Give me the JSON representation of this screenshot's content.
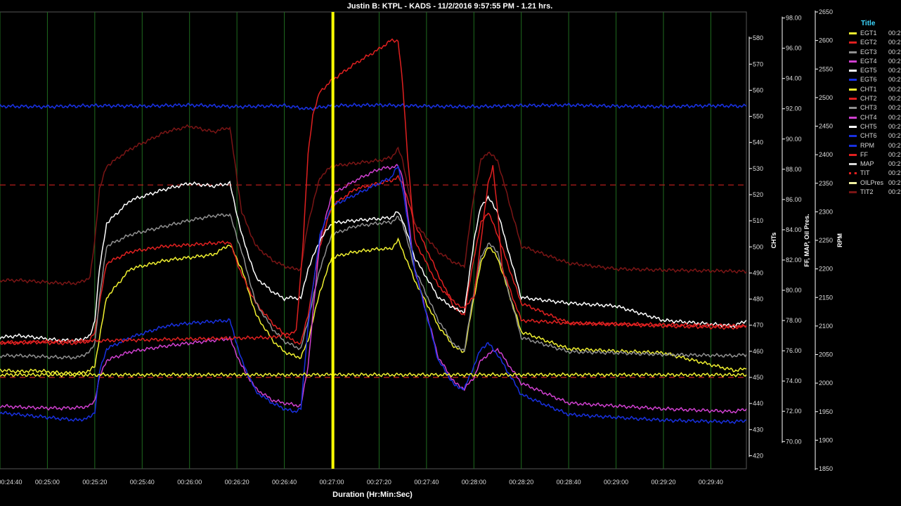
{
  "title": "Justin B: KTPL - KADS - 11/2/2016 9:57:55 PM - 1.21 hrs.",
  "chart_data": {
    "type": "line",
    "title": "Justin B: KTPL - KADS - 11/2/2016 9:57:55 PM - 1.21 hrs.",
    "xlabel": "Duration (Hr:Min:Sec)",
    "x_unit": "seconds",
    "x_ticks": [
      {
        "t": 1480,
        "label": "00:24:40"
      },
      {
        "t": 1500,
        "label": "00:25:00"
      },
      {
        "t": 1520,
        "label": "00:25:20"
      },
      {
        "t": 1540,
        "label": "00:25:40"
      },
      {
        "t": 1560,
        "label": "00:26:00"
      },
      {
        "t": 1580,
        "label": "00:26:20"
      },
      {
        "t": 1600,
        "label": "00:26:40"
      },
      {
        "t": 1620,
        "label": "00:27:00"
      },
      {
        "t": 1640,
        "label": "00:27:20"
      },
      {
        "t": 1660,
        "label": "00:27:40"
      },
      {
        "t": 1680,
        "label": "00:28:00"
      },
      {
        "t": 1700,
        "label": "00:28:20"
      },
      {
        "t": 1720,
        "label": "00:28:40"
      },
      {
        "t": 1740,
        "label": "00:29:00"
      },
      {
        "t": 1760,
        "label": "00:29:20"
      },
      {
        "t": 1780,
        "label": "00:29:40"
      }
    ],
    "xlim": [
      1480,
      1795
    ],
    "cursor_x": 1620.5,
    "reference_lines": [
      {
        "axis": "rpm",
        "value": 2347,
        "color": "#c8201e"
      },
      {
        "axis": "rpm",
        "value": 2010,
        "color": "#c8201e"
      }
    ],
    "axes": [
      {
        "id": "cht",
        "label": "CHTs",
        "ylim": [
          415,
          590
        ],
        "ticks": [
          420,
          430,
          440,
          450,
          460,
          470,
          480,
          490,
          500,
          510,
          520,
          530,
          540,
          550,
          560,
          570,
          580
        ]
      },
      {
        "id": "ff",
        "label": "FF,  MAP,  Oil Pres.",
        "ylim": [
          68.2,
          98.4
        ],
        "ticks": [
          "70.00",
          "72.00",
          "74.00",
          "76.00",
          "78.00",
          "80.00",
          "82.00",
          "84.00",
          "86.00",
          "88.00",
          "90.00",
          "92.00",
          "94.00",
          "96.00",
          "98.00"
        ]
      },
      {
        "id": "rpm",
        "label": "RPM",
        "ylim": [
          1850,
          2650
        ],
        "ticks": [
          1850,
          1900,
          1950,
          2000,
          2050,
          2100,
          2150,
          2200,
          2250,
          2300,
          2350,
          2400,
          2450,
          2500,
          2550,
          2600,
          2650
        ]
      }
    ],
    "series": [
      {
        "name": "EGT1",
        "color": "#f0f030",
        "axis": "rpm",
        "x": [
          1480,
          1488,
          1495,
          1505,
          1513,
          1518,
          1520,
          1522,
          1525,
          1535,
          1550,
          1560,
          1570,
          1577,
          1582,
          1588,
          1595,
          1600,
          1604,
          1607,
          1610,
          1615,
          1620,
          1630,
          1640,
          1645,
          1648,
          1650,
          1655,
          1665,
          1672,
          1676,
          1680,
          1683,
          1686,
          1690,
          1700,
          1720,
          1740,
          1760,
          1790,
          1795
        ],
        "y": [
          2023,
          2020,
          2022,
          2018,
          2017,
          2022,
          2030,
          2080,
          2150,
          2200,
          2215,
          2220,
          2225,
          2243,
          2200,
          2120,
          2075,
          2055,
          2048,
          2045,
          2075,
          2160,
          2220,
          2230,
          2235,
          2235,
          2250,
          2232,
          2180,
          2100,
          2062,
          2055,
          2150,
          2210,
          2240,
          2220,
          2090,
          2060,
          2056,
          2053,
          2022,
          2025
        ]
      },
      {
        "name": "EGT2",
        "color": "#e02020",
        "axis": "rpm",
        "x": [
          1480,
          1488,
          1495,
          1505,
          1513,
          1518,
          1520,
          1522,
          1525,
          1535,
          1550,
          1560,
          1570,
          1577,
          1582,
          1588,
          1595,
          1600,
          1604,
          1607,
          1610,
          1615,
          1620,
          1630,
          1640,
          1645,
          1648,
          1650,
          1655,
          1665,
          1672,
          1676,
          1680,
          1683,
          1686,
          1690,
          1700,
          1720,
          1740,
          1760,
          1790,
          1795
        ],
        "y": [
          2071,
          2070,
          2072,
          2070,
          2070,
          2075,
          2090,
          2140,
          2210,
          2230,
          2240,
          2242,
          2245,
          2247,
          2190,
          2140,
          2105,
          2085,
          2073,
          2070,
          2120,
          2240,
          2310,
          2340,
          2350,
          2355,
          2360,
          2350,
          2280,
          2190,
          2130,
          2120,
          2220,
          2280,
          2300,
          2260,
          2140,
          2105,
          2103,
          2100,
          2097,
          2100
        ]
      },
      {
        "name": "EGT3",
        "color": "#909090",
        "axis": "rpm",
        "x": [
          1480,
          1488,
          1495,
          1505,
          1513,
          1518,
          1520,
          1522,
          1525,
          1535,
          1550,
          1560,
          1570,
          1577,
          1582,
          1588,
          1595,
          1600,
          1604,
          1607,
          1610,
          1615,
          1620,
          1630,
          1640,
          1645,
          1648,
          1650,
          1655,
          1665,
          1672,
          1676,
          1680,
          1683,
          1686,
          1690,
          1700,
          1720,
          1740,
          1760,
          1790,
          1795
        ],
        "y": [
          2048,
          2048,
          2047,
          2045,
          2045,
          2055,
          2070,
          2150,
          2240,
          2260,
          2275,
          2285,
          2293,
          2295,
          2230,
          2140,
          2095,
          2073,
          2065,
          2060,
          2110,
          2200,
          2260,
          2275,
          2280,
          2282,
          2290,
          2280,
          2200,
          2110,
          2065,
          2058,
          2160,
          2220,
          2245,
          2230,
          2080,
          2055,
          2053,
          2050,
          2048,
          2050
        ]
      },
      {
        "name": "EGT4",
        "color": "#d040d0",
        "axis": "rpm",
        "x": [
          1480,
          1488,
          1495,
          1505,
          1513,
          1518,
          1520,
          1522,
          1525,
          1535,
          1550,
          1560,
          1570,
          1577,
          1582,
          1588,
          1595,
          1600,
          1604,
          1607,
          1610,
          1615,
          1620,
          1630,
          1640,
          1645,
          1648,
          1650,
          1655,
          1665,
          1672,
          1676,
          1680,
          1683,
          1686,
          1690,
          1700,
          1720,
          1740,
          1760,
          1790,
          1795
        ],
        "y": [
          1960,
          1958,
          1957,
          1956,
          1957,
          1960,
          1970,
          2010,
          2040,
          2055,
          2065,
          2070,
          2075,
          2078,
          2030,
          1990,
          1970,
          1965,
          1962,
          1960,
          2030,
          2250,
          2330,
          2355,
          2375,
          2378,
          2380,
          2360,
          2200,
          2045,
          2000,
          1990,
          2010,
          2040,
          2050,
          2060,
          2000,
          1965,
          1960,
          1955,
          1950,
          1955
        ]
      },
      {
        "name": "EGT5",
        "color": "#ffffff",
        "axis": "rpm",
        "x": [
          1480,
          1488,
          1495,
          1505,
          1513,
          1518,
          1520,
          1522,
          1525,
          1535,
          1550,
          1560,
          1570,
          1577,
          1582,
          1588,
          1595,
          1600,
          1604,
          1607,
          1610,
          1615,
          1620,
          1630,
          1640,
          1645,
          1648,
          1650,
          1655,
          1665,
          1672,
          1676,
          1680,
          1683,
          1686,
          1690,
          1700,
          1720,
          1740,
          1760,
          1790,
          1795
        ],
        "y": [
          2080,
          2083,
          2080,
          2075,
          2075,
          2082,
          2110,
          2200,
          2280,
          2320,
          2340,
          2350,
          2345,
          2350,
          2260,
          2185,
          2160,
          2148,
          2150,
          2148,
          2200,
          2250,
          2280,
          2285,
          2288,
          2290,
          2300,
          2285,
          2220,
          2150,
          2130,
          2125,
          2250,
          2310,
          2325,
          2300,
          2150,
          2140,
          2135,
          2110,
          2100,
          2110
        ]
      },
      {
        "name": "EGT6",
        "color": "#1830e0",
        "axis": "rpm",
        "x": [
          1480,
          1488,
          1495,
          1505,
          1513,
          1518,
          1520,
          1522,
          1525,
          1535,
          1550,
          1560,
          1570,
          1577,
          1582,
          1588,
          1595,
          1600,
          1604,
          1607,
          1610,
          1615,
          1620,
          1630,
          1640,
          1645,
          1648,
          1650,
          1655,
          1665,
          1672,
          1676,
          1680,
          1683,
          1686,
          1690,
          1700,
          1720,
          1740,
          1760,
          1790,
          1795
        ],
        "y": [
          1948,
          1945,
          1942,
          1938,
          1935,
          1940,
          1950,
          2020,
          2060,
          2080,
          2100,
          2105,
          2108,
          2110,
          2040,
          1985,
          1965,
          1955,
          1950,
          1955,
          2100,
          2260,
          2310,
          2330,
          2350,
          2360,
          2380,
          2340,
          2200,
          2040,
          1995,
          1990,
          2030,
          2060,
          2070,
          2050,
          1980,
          1945,
          1940,
          1935,
          1932,
          1935
        ]
      },
      {
        "name": "CHT1",
        "color": "#f0f030",
        "axis": "cht",
        "x": [
          1480,
          1605,
          1615,
          1620,
          1650,
          1660,
          1795
        ],
        "y": [
          451,
          451,
          451,
          451,
          451,
          451,
          451
        ]
      },
      {
        "name": "RPM",
        "color": "#1830e0",
        "axis": "rpm",
        "x": [
          1480,
          1500,
          1520,
          1540,
          1560,
          1580,
          1600,
          1605,
          1610,
          1620,
          1640,
          1660,
          1680,
          1700,
          1720,
          1740,
          1760,
          1780,
          1795
        ],
        "y": [
          2485,
          2484,
          2486,
          2485,
          2487,
          2484,
          2486,
          2483,
          2480,
          2486,
          2487,
          2485,
          2484,
          2486,
          2487,
          2485,
          2484,
          2486,
          2485
        ]
      },
      {
        "name": "TIT2",
        "color": "#7a1515",
        "axis": "rpm",
        "x": [
          1480,
          1488,
          1495,
          1505,
          1513,
          1518,
          1520,
          1522,
          1525,
          1535,
          1550,
          1560,
          1570,
          1577,
          1582,
          1588,
          1595,
          1600,
          1604,
          1607,
          1610,
          1615,
          1620,
          1630,
          1640,
          1645,
          1648,
          1650,
          1655,
          1665,
          1672,
          1676,
          1680,
          1683,
          1686,
          1690,
          1700,
          1720,
          1740,
          1760,
          1790,
          1795
        ],
        "y": [
          2180,
          2180,
          2178,
          2175,
          2175,
          2185,
          2250,
          2340,
          2380,
          2410,
          2440,
          2450,
          2440,
          2448,
          2300,
          2240,
          2215,
          2205,
          2200,
          2200,
          2280,
          2360,
          2380,
          2385,
          2390,
          2395,
          2410,
          2390,
          2280,
          2230,
          2210,
          2205,
          2330,
          2390,
          2405,
          2390,
          2240,
          2210,
          2200,
          2198,
          2196,
          2195
        ]
      },
      {
        "name": "FF",
        "color": "#e02020",
        "axis": "rpm",
        "x": [
          1480,
          1595,
          1600,
          1605,
          1608,
          1610,
          1612,
          1615,
          1620,
          1630,
          1640,
          1645,
          1648,
          1650,
          1652,
          1655,
          1665,
          1675,
          1680,
          1683,
          1686,
          1688,
          1690,
          1692,
          1700,
          1720,
          1795
        ],
        "y": [
          2071,
          2080,
          2085,
          2090,
          2250,
          2400,
          2470,
          2510,
          2530,
          2560,
          2585,
          2600,
          2600,
          2520,
          2400,
          2250,
          2170,
          2130,
          2150,
          2250,
          2350,
          2380,
          2300,
          2200,
          2110,
          2105,
          2100
        ]
      }
    ]
  },
  "y_axes": {
    "cht": {
      "label": "CHTs",
      "ticks": [
        "420",
        "430",
        "440",
        "450",
        "460",
        "470",
        "480",
        "490",
        "500",
        "510",
        "520",
        "530",
        "540",
        "550",
        "560",
        "570",
        "580"
      ]
    },
    "ff": {
      "label": "FF,  MAP,  Oil Pres.",
      "ticks": [
        "70.00",
        "72.00",
        "74.00",
        "76.00",
        "78.00",
        "80.00",
        "82.00",
        "84.00",
        "86.00",
        "88.00",
        "90.00",
        "92.00",
        "94.00",
        "96.00",
        "98.00"
      ]
    },
    "rpm": {
      "label": "RPM",
      "ticks": [
        "1850",
        "1900",
        "1950",
        "2000",
        "2050",
        "2100",
        "2150",
        "2200",
        "2250",
        "2300",
        "2350",
        "2400",
        "2450",
        "2500",
        "2550",
        "2600",
        "2650"
      ]
    }
  },
  "legend": {
    "title": "Title",
    "items": [
      {
        "label": "EGT1",
        "color": "#f0f030",
        "value": "00:2"
      },
      {
        "label": "EGT2",
        "color": "#e02020",
        "value": "00:2"
      },
      {
        "label": "EGT3",
        "color": "#909090",
        "value": "00:2"
      },
      {
        "label": "EGT4",
        "color": "#d040d0",
        "value": "00:2"
      },
      {
        "label": "EGT5",
        "color": "#ffffff",
        "value": "00:2"
      },
      {
        "label": "EGT6",
        "color": "#1830e0",
        "value": "00:2"
      },
      {
        "label": "CHT1",
        "color": "#f0f030",
        "value": "00:2"
      },
      {
        "label": "CHT2",
        "color": "#e02020",
        "value": "00:2"
      },
      {
        "label": "CHT3",
        "color": "#909090",
        "value": "00:2"
      },
      {
        "label": "CHT4",
        "color": "#d040d0",
        "value": "00:2"
      },
      {
        "label": "CHT5",
        "color": "#ffffff",
        "value": "00:2"
      },
      {
        "label": "CHT6",
        "color": "#1830e0",
        "value": "00:2"
      },
      {
        "label": "RPM",
        "color": "#1830e0",
        "value": "00:2"
      },
      {
        "label": "FF",
        "color": "#e02020",
        "value": "00:2"
      },
      {
        "label": "MAP",
        "color": "#d8d8d8",
        "value": "00:2"
      },
      {
        "label": "TIT",
        "color": "#e02020",
        "value": "00:2",
        "dotted": true
      },
      {
        "label": "OILPres",
        "color": "#f0f0a0",
        "value": "00:2"
      },
      {
        "label": "TIT2",
        "color": "#7a1515",
        "value": "00:2"
      }
    ]
  }
}
